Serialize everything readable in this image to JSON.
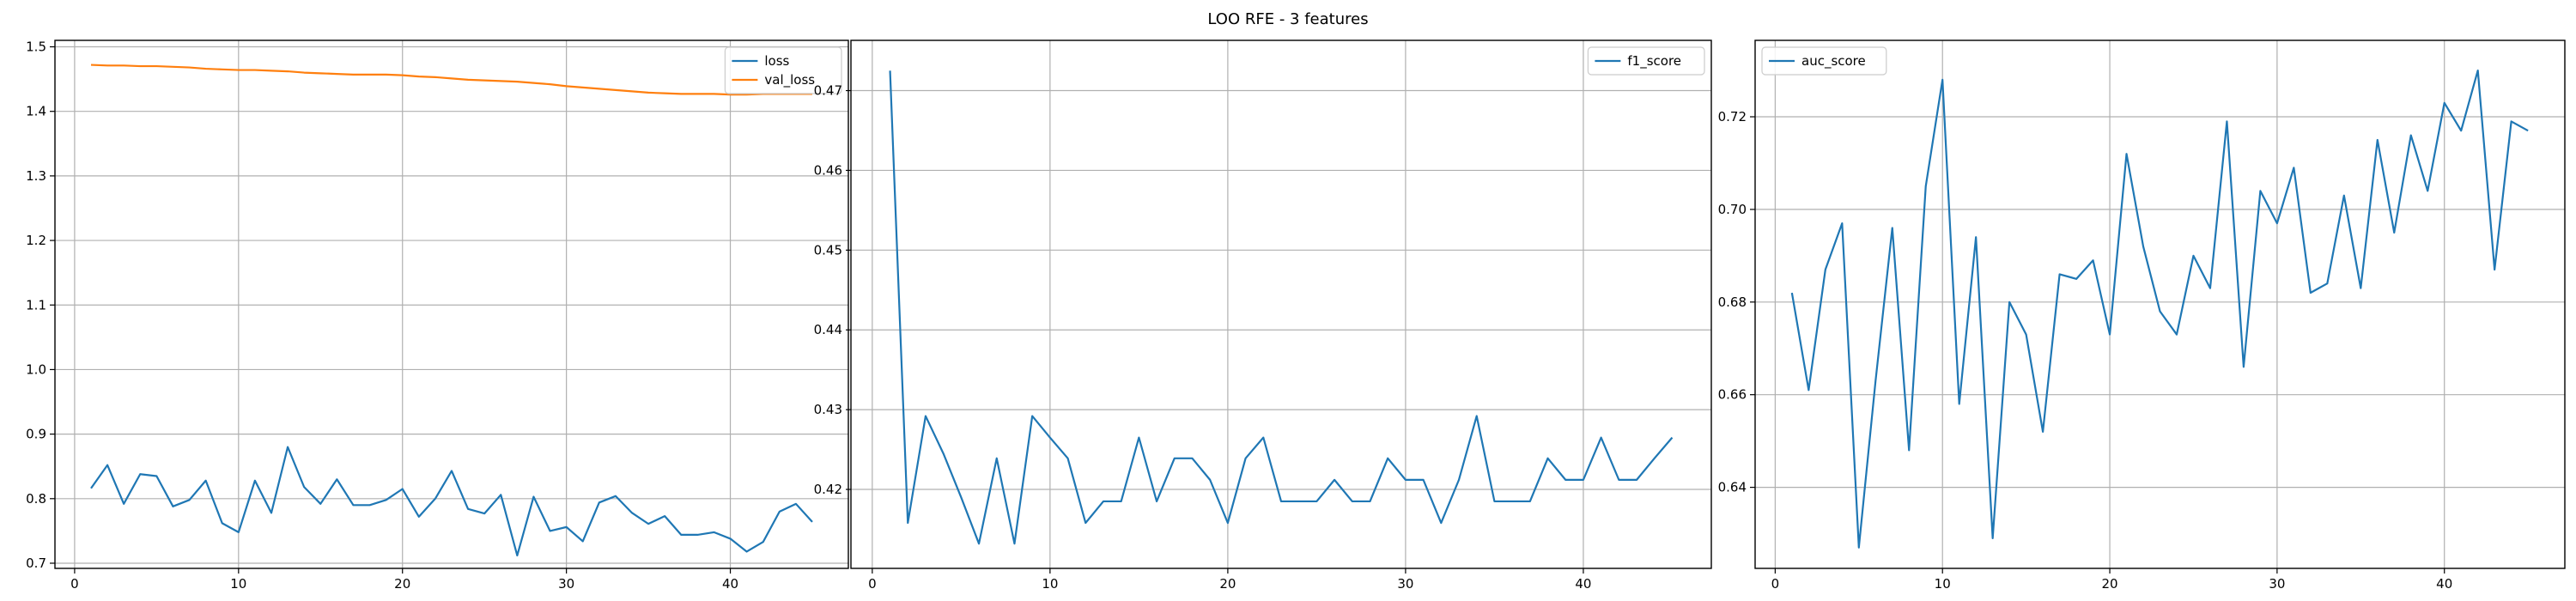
{
  "figure": {
    "title": "LOO RFE - 3 features"
  },
  "chart_data": [
    {
      "type": "line",
      "title": "",
      "xlabel": "",
      "ylabel": "",
      "grid": true,
      "legend": "top-right",
      "xlim": [
        -1.2,
        47.2
      ],
      "ylim": [
        0.692,
        1.51
      ],
      "xticks": [
        0,
        10,
        20,
        30,
        40
      ],
      "yticks": [
        0.7,
        0.8,
        0.9,
        1.0,
        1.1,
        1.2,
        1.3,
        1.4,
        1.5
      ],
      "x": [
        1,
        2,
        3,
        4,
        5,
        6,
        7,
        8,
        9,
        10,
        11,
        12,
        13,
        14,
        15,
        16,
        17,
        18,
        19,
        20,
        21,
        22,
        23,
        24,
        25,
        26,
        27,
        28,
        29,
        30,
        31,
        32,
        33,
        34,
        35,
        36,
        37,
        38,
        39,
        40,
        41,
        42,
        43,
        44,
        45
      ],
      "series": [
        {
          "name": "loss",
          "color": "#1f77b4",
          "values": [
            0.816,
            0.852,
            0.792,
            0.838,
            0.835,
            0.788,
            0.798,
            0.828,
            0.762,
            0.748,
            0.828,
            0.778,
            0.88,
            0.818,
            0.792,
            0.83,
            0.79,
            0.79,
            0.798,
            0.815,
            0.772,
            0.8,
            0.843,
            0.784,
            0.777,
            0.806,
            0.712,
            0.803,
            0.75,
            0.756,
            0.734,
            0.794,
            0.804,
            0.778,
            0.761,
            0.773,
            0.744,
            0.744,
            0.748,
            0.738,
            0.718,
            0.733,
            0.78,
            0.792,
            0.764
          ]
        },
        {
          "name": "val_loss",
          "color": "#ff7f0e",
          "values": [
            1.472,
            1.471,
            1.471,
            1.47,
            1.47,
            1.469,
            1.468,
            1.466,
            1.465,
            1.464,
            1.464,
            1.463,
            1.462,
            1.46,
            1.459,
            1.458,
            1.457,
            1.457,
            1.457,
            1.456,
            1.454,
            1.453,
            1.451,
            1.449,
            1.448,
            1.447,
            1.446,
            1.444,
            1.442,
            1.439,
            1.437,
            1.435,
            1.433,
            1.431,
            1.429,
            1.428,
            1.427,
            1.427,
            1.427,
            1.426,
            1.426,
            1.427,
            1.427,
            1.427,
            1.427
          ]
        }
      ]
    },
    {
      "type": "line",
      "title": "",
      "xlabel": "",
      "ylabel": "",
      "grid": true,
      "legend": "top-right",
      "xlim": [
        -1.2,
        47.2
      ],
      "ylim": [
        0.4101,
        0.4763
      ],
      "xticks": [
        0,
        10,
        20,
        30,
        40
      ],
      "yticks": [
        0.42,
        0.43,
        0.44,
        0.45,
        0.46,
        0.47
      ],
      "x": [
        1,
        2,
        3,
        4,
        5,
        6,
        7,
        8,
        9,
        10,
        11,
        12,
        13,
        14,
        15,
        16,
        17,
        18,
        19,
        20,
        21,
        22,
        23,
        24,
        25,
        26,
        27,
        28,
        29,
        30,
        31,
        32,
        33,
        34,
        35,
        36,
        37,
        38,
        39,
        40,
        41,
        42,
        43,
        44,
        45
      ],
      "series": [
        {
          "name": "f1_score",
          "color": "#1f77b4",
          "values": [
            0.4725,
            0.4158,
            0.4292,
            0.4245,
            0.419,
            0.4132,
            0.4239,
            0.4132,
            0.4292,
            0.4265,
            0.4239,
            0.4158,
            0.4185,
            0.4185,
            0.4265,
            0.4185,
            0.4239,
            0.4239,
            0.4212,
            0.4158,
            0.4239,
            0.4265,
            0.4185,
            0.4185,
            0.4185,
            0.4212,
            0.4185,
            0.4185,
            0.4239,
            0.4212,
            0.4212,
            0.4158,
            0.4212,
            0.4292,
            0.4185,
            0.4185,
            0.4185,
            0.4239,
            0.4212,
            0.4212,
            0.4265,
            0.4212,
            0.4212,
            0.4239,
            0.4265
          ]
        }
      ]
    },
    {
      "type": "line",
      "title": "",
      "xlabel": "",
      "ylabel": "",
      "grid": true,
      "legend": "top-left",
      "xlim": [
        -1.2,
        47.2
      ],
      "ylim": [
        0.6225,
        0.7365
      ],
      "xticks": [
        0,
        10,
        20,
        30,
        40
      ],
      "yticks": [
        0.64,
        0.66,
        0.68,
        0.7,
        0.72
      ],
      "x": [
        1,
        2,
        3,
        4,
        5,
        6,
        7,
        8,
        9,
        10,
        11,
        12,
        13,
        14,
        15,
        16,
        17,
        18,
        19,
        20,
        21,
        22,
        23,
        24,
        25,
        26,
        27,
        28,
        29,
        30,
        31,
        32,
        33,
        34,
        35,
        36,
        37,
        38,
        39,
        40,
        41,
        42,
        43,
        44,
        45
      ],
      "series": [
        {
          "name": "auc_score",
          "color": "#1f77b4",
          "values": [
            0.682,
            0.661,
            0.687,
            0.697,
            0.627,
            0.663,
            0.696,
            0.648,
            0.705,
            0.728,
            0.658,
            0.694,
            0.629,
            0.68,
            0.673,
            0.652,
            0.686,
            0.685,
            0.689,
            0.673,
            0.712,
            0.692,
            0.678,
            0.673,
            0.69,
            0.683,
            0.719,
            0.666,
            0.704,
            0.697,
            0.709,
            0.682,
            0.684,
            0.703,
            0.683,
            0.715,
            0.695,
            0.716,
            0.704,
            0.723,
            0.717,
            0.73,
            0.687,
            0.719,
            0.717
          ]
        }
      ]
    }
  ]
}
